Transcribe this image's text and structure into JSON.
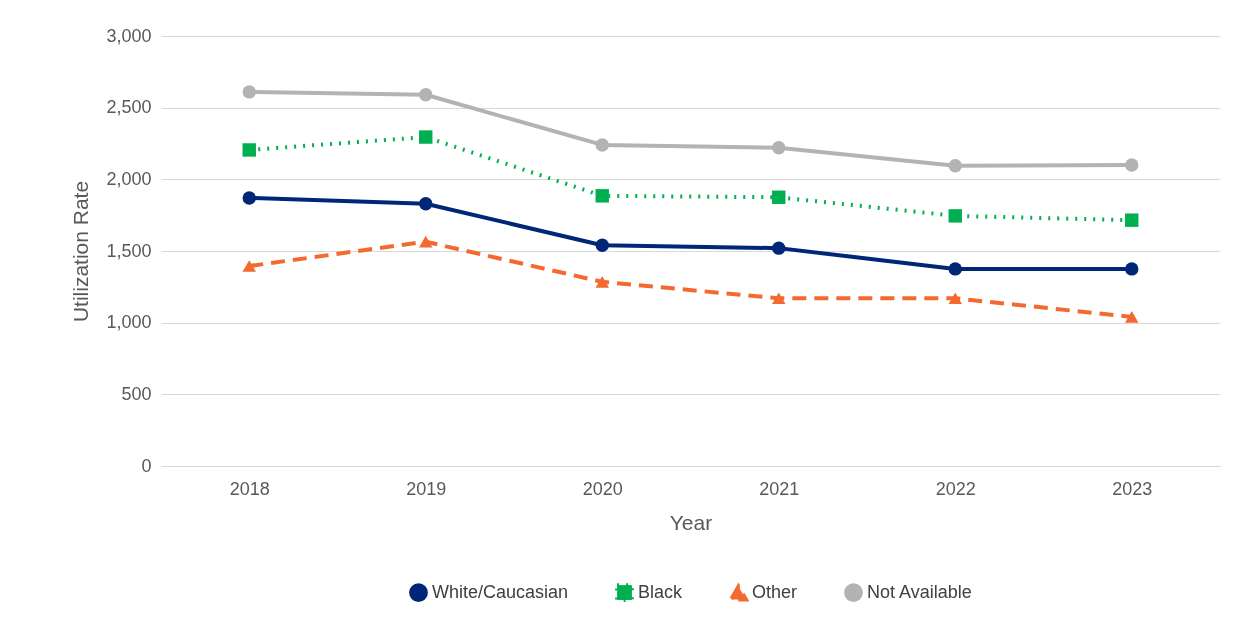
{
  "chart_data": {
    "type": "line",
    "xlabel": "Year",
    "ylabel": "Utilization Rate",
    "categories": [
      "2018",
      "2019",
      "2020",
      "2021",
      "2022",
      "2023"
    ],
    "ylim": [
      0,
      3000
    ],
    "yticks": [
      {
        "value": 0,
        "label": "0"
      },
      {
        "value": 500,
        "label": "500"
      },
      {
        "value": 1000,
        "label": "1,000"
      },
      {
        "value": 1500,
        "label": "1,500"
      },
      {
        "value": 2000,
        "label": "2,000"
      },
      {
        "value": 2500,
        "label": "2,500"
      },
      {
        "value": 3000,
        "label": "3,000"
      }
    ],
    "grid": "y",
    "legend": "bottom",
    "series": [
      {
        "name": "White/Caucasian",
        "color": "#002677",
        "marker": "circle",
        "line_style": "solid",
        "values": [
          1870,
          1830,
          1540,
          1520,
          1375,
          1375
        ]
      },
      {
        "name": "Black",
        "color": "#00b050",
        "marker": "square",
        "line_style": "dotted",
        "values": [
          2205,
          2295,
          1885,
          1875,
          1745,
          1715
        ]
      },
      {
        "name": "Other",
        "color": "#f4692f",
        "marker": "triangle",
        "line_style": "dashed",
        "values": [
          1395,
          1565,
          1285,
          1170,
          1170,
          1040
        ]
      },
      {
        "name": "Not Available",
        "color": "#b3b3b3",
        "marker": "circle",
        "line_style": "solid",
        "values": [
          2610,
          2590,
          2240,
          2220,
          2095,
          2100
        ]
      }
    ]
  }
}
